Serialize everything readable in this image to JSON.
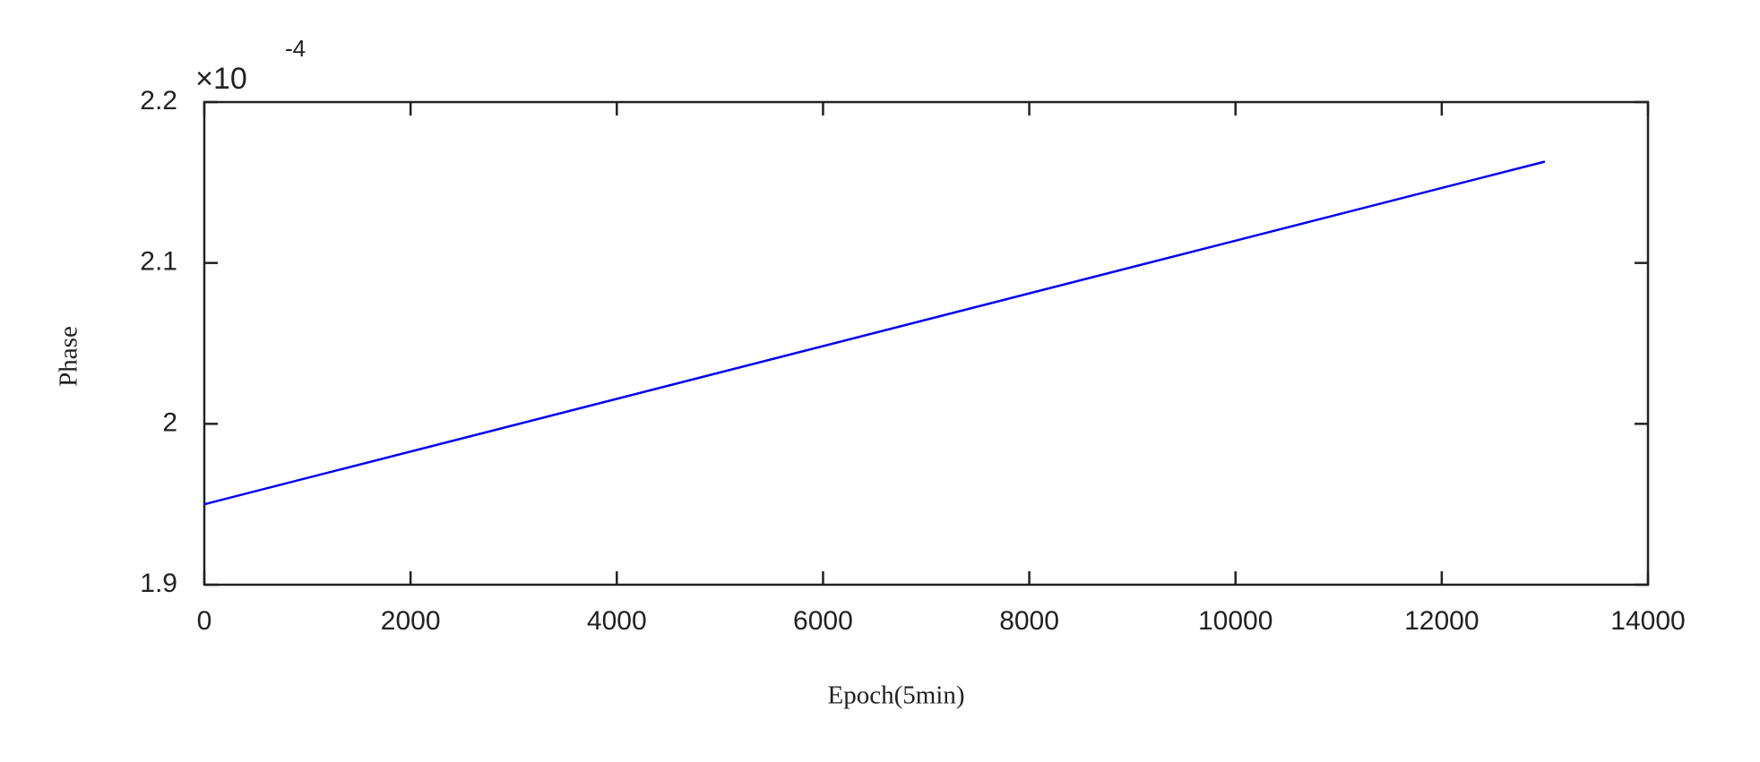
{
  "chart_data": {
    "type": "line",
    "xlabel": "Epoch(5min)",
    "ylabel": "Phase",
    "y_multiplier": "×10",
    "y_exponent": "-4",
    "x": [
      0,
      13000
    ],
    "series": [
      {
        "color": "#0000ee",
        "values": [
          1.95,
          2.163
        ]
      }
    ],
    "xlim": [
      0,
      14000
    ],
    "xticks": [
      0,
      2000,
      4000,
      6000,
      8000,
      10000,
      12000,
      14000
    ],
    "ylim": [
      1.9,
      2.2
    ],
    "yticks": [
      1.9,
      2,
      2.1,
      2.2
    ],
    "grid": false
  }
}
